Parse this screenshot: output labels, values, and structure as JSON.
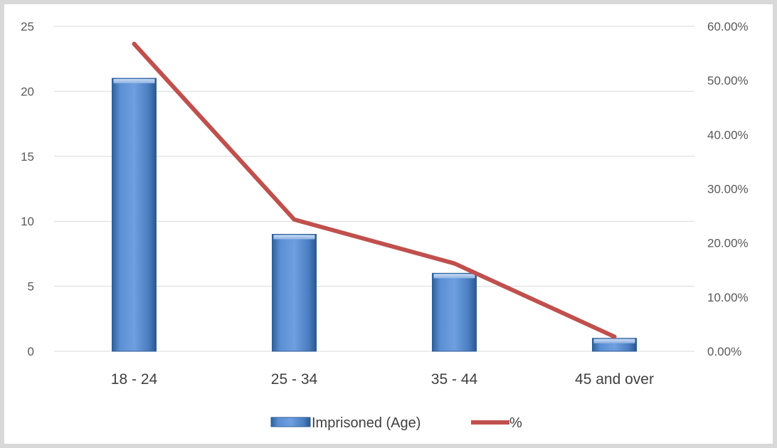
{
  "chart_data": {
    "type": "bar",
    "categories": [
      "18 - 24",
      "25 - 34",
      "35 - 44",
      "45 and over"
    ],
    "series": [
      {
        "name": "Imprisoned (Age)",
        "type": "bar",
        "axis": "left",
        "values": [
          21,
          9,
          6,
          1
        ]
      },
      {
        "name": "%",
        "type": "line",
        "axis": "right",
        "values": [
          0.5676,
          0.2432,
          0.1622,
          0.027
        ]
      }
    ],
    "y_left": {
      "min": 0,
      "max": 25,
      "step": 5,
      "tick_labels": [
        "0",
        "5",
        "10",
        "15",
        "20",
        "25"
      ]
    },
    "y_right": {
      "min": 0,
      "max": 0.6,
      "step": 0.1,
      "tick_labels": [
        "0.00%",
        "10.00%",
        "20.00%",
        "30.00%",
        "40.00%",
        "50.00%",
        "60.00%"
      ]
    },
    "grid": true,
    "legend": "bottom",
    "colors": {
      "bar": "#4f81bd",
      "bar_dark": "#2c5c94",
      "bar_light": "#9dbbe4",
      "line": "#c0504d",
      "grid": "#d9d9d9"
    }
  }
}
